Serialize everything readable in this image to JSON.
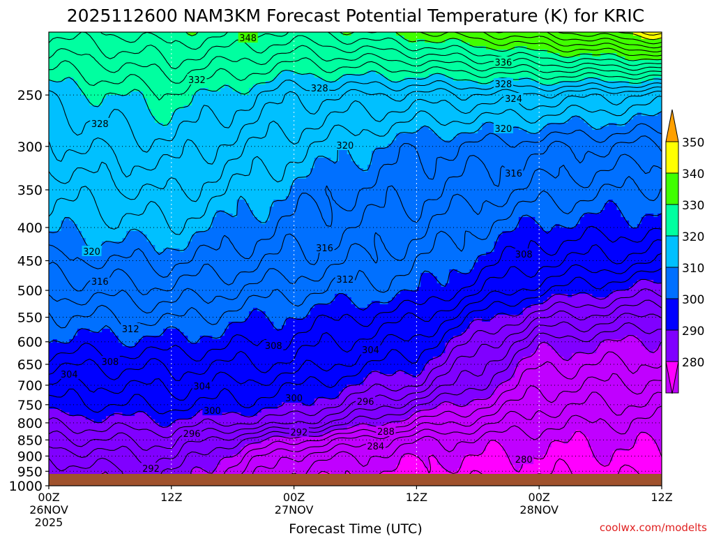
{
  "chart_data": {
    "type": "contour",
    "title": "2025112600 NAM3KM Forecast Potential Temperature (K) for KRIC",
    "xlabel": "Forecast Time (UTC)",
    "ylabel": "",
    "x_ticks": [
      {
        "label": "00Z",
        "date": "26NOV",
        "year": "2025"
      },
      {
        "label": "12Z"
      },
      {
        "label": "00Z",
        "date": "27NOV"
      },
      {
        "label": "12Z"
      },
      {
        "label": "00Z",
        "date": "28NOV"
      },
      {
        "label": "12Z"
      }
    ],
    "y_ticks": [
      "250",
      "300",
      "350",
      "400",
      "450",
      "500",
      "550",
      "600",
      "650",
      "700",
      "750",
      "800",
      "850",
      "900",
      "950",
      "1000"
    ],
    "y_scale": "log-pressure",
    "ylim": [
      1000,
      200
    ],
    "xlim_hours": [
      0,
      60
    ],
    "grid": true,
    "colorbar": {
      "labels": [
        "350",
        "340",
        "330",
        "320",
        "310",
        "300",
        "290",
        "280"
      ],
      "levels": [
        270,
        280,
        290,
        300,
        310,
        320,
        330,
        340,
        350,
        360
      ],
      "colors": [
        "#ff00ff",
        "#c000ff",
        "#8000ff",
        "#0000ff",
        "#0070ff",
        "#00c0ff",
        "#00ffa0",
        "#40ff00",
        "#ffff00",
        "#ffa000"
      ]
    },
    "contour_labels": [
      "348",
      "332",
      "336",
      "328",
      "328",
      "324",
      "328",
      "320",
      "320",
      "316",
      "320",
      "316",
      "308",
      "316",
      "312",
      "312",
      "308",
      "308",
      "304",
      "304",
      "304",
      "300",
      "300",
      "296",
      "296",
      "292",
      "288",
      "284",
      "292",
      "280"
    ],
    "theta_samples": {
      "hours": [
        0,
        12,
        24,
        36,
        48,
        60
      ],
      "pressures_hPa": [
        1000,
        950,
        900,
        850,
        800,
        750,
        700,
        650,
        600,
        550,
        500,
        450,
        400,
        350,
        300,
        250,
        200
      ],
      "values_K": [
        [
          289.5,
          291.5,
          280.5,
          278.5,
          277.5,
          277.5
        ],
        [
          290.5,
          292.5,
          281.5,
          279.5,
          278.5,
          278.5
        ],
        [
          292.5,
          294.5,
          283.5,
          280.5,
          279.5,
          279.5
        ],
        [
          295.5,
          296.5,
          288.5,
          282.5,
          280.5,
          280.5
        ],
        [
          298.5,
          299.5,
          296.5,
          287.5,
          282.5,
          281.5
        ],
        [
          301.5,
          302.5,
          300.5,
          292.5,
          284.5,
          283.5
        ],
        [
          303.5,
          304.5,
          302.5,
          297.5,
          286.5,
          285.5
        ],
        [
          306.5,
          306.5,
          305.5,
          300.5,
          288.5,
          287.5
        ],
        [
          309.5,
          309.5,
          307.5,
          303.5,
          291.5,
          289.5
        ],
        [
          311.5,
          312.5,
          309.5,
          306.5,
          296.5,
          293.5
        ],
        [
          314.5,
          315.5,
          312.5,
          310.5,
          302.5,
          298.5
        ],
        [
          317.5,
          318.5,
          315.5,
          312.5,
          306.5,
          304.5
        ],
        [
          320.5,
          321.5,
          317.5,
          314.5,
          309.5,
          308.5
        ],
        [
          322.5,
          324.5,
          319.5,
          316.5,
          313.5,
          311.5
        ],
        [
          325.5,
          327.5,
          322.5,
          318.5,
          316.5,
          315.5
        ],
        [
          328.5,
          331.5,
          326.5,
          325.5,
          325.5,
          323.5
        ],
        [
          336.5,
          339.5,
          337.5,
          341.5,
          346.5,
          352.5
        ]
      ]
    }
  },
  "credit": "coolwx.com/modelts",
  "ground_color": "#a0522d"
}
